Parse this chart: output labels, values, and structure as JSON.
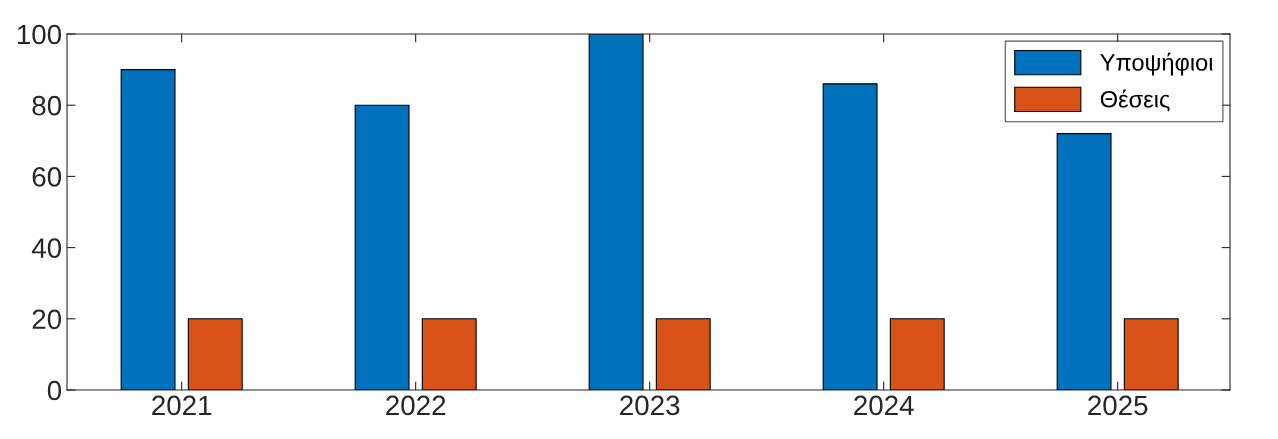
{
  "chart_data": {
    "type": "bar",
    "categories": [
      "2021",
      "2022",
      "2023",
      "2024",
      "2025"
    ],
    "series": [
      {
        "name": "Υποψήφιοι",
        "color": "#0072bd",
        "values": [
          90,
          80,
          100,
          86,
          72
        ]
      },
      {
        "name": "Θέσεις",
        "color": "#d95319",
        "values": [
          20,
          20,
          20,
          20,
          20
        ]
      }
    ],
    "ylim": [
      0,
      100
    ],
    "yticks": [
      0,
      20,
      40,
      60,
      80,
      100
    ],
    "grid": false,
    "legend": "top right"
  }
}
